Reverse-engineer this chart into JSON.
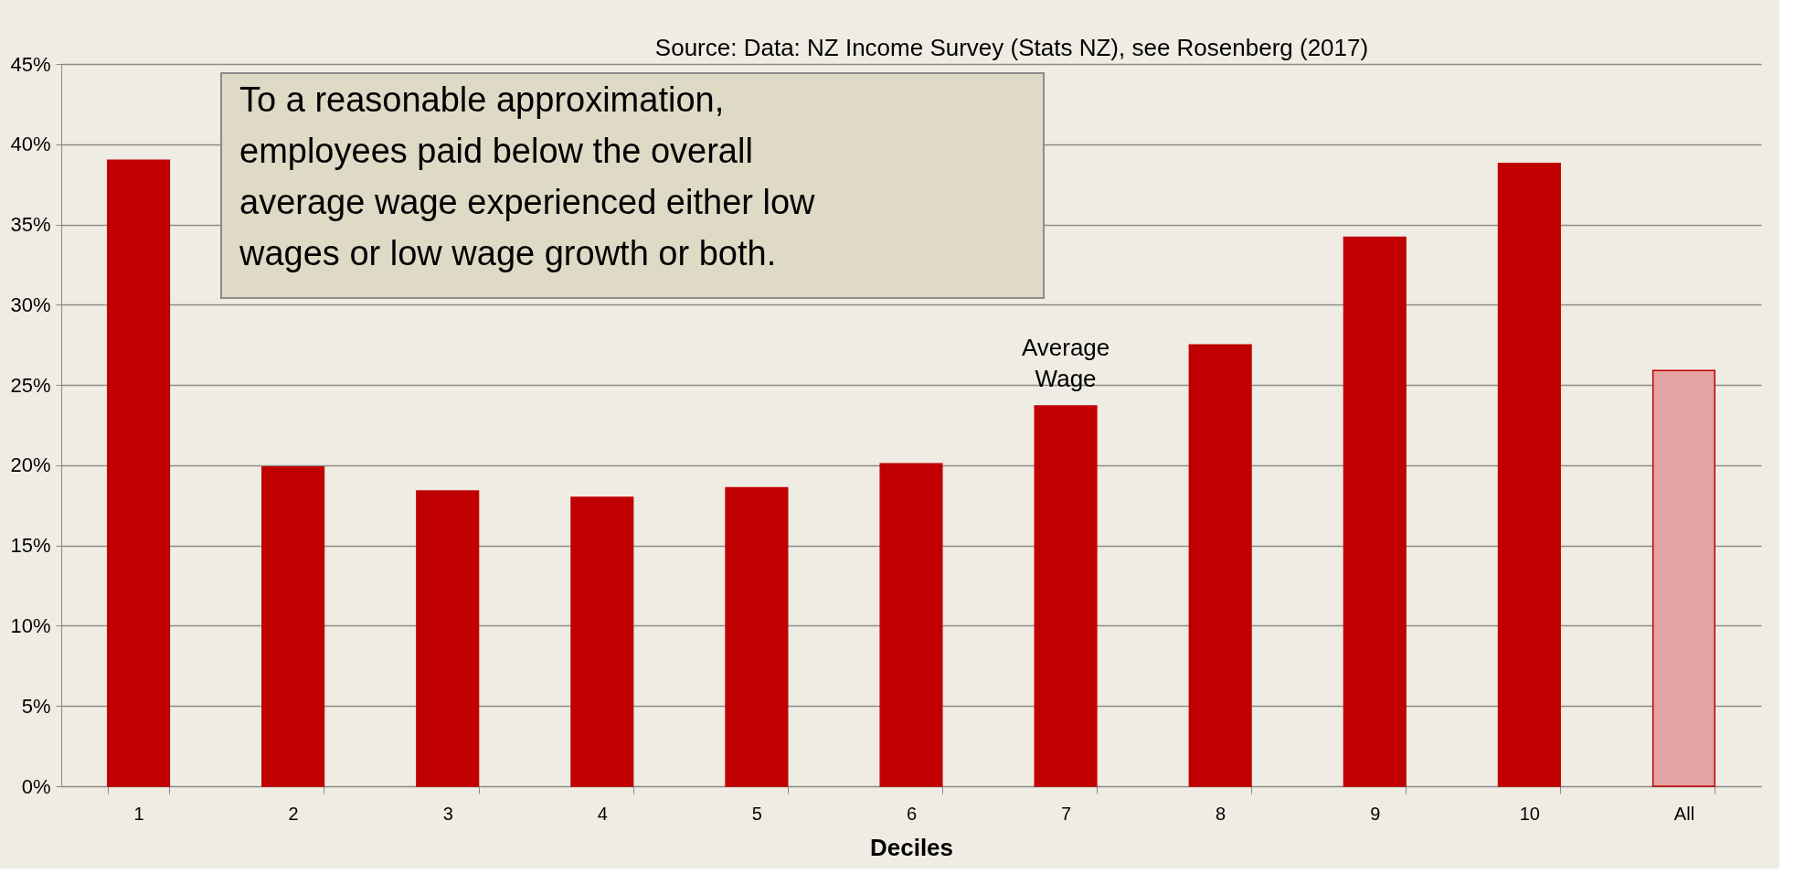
{
  "chart_data": {
    "type": "bar",
    "xlabel": "Deciles",
    "categories": [
      "1",
      "2",
      "3",
      "4",
      "5",
      "6",
      "7",
      "8",
      "9",
      "10",
      "All"
    ],
    "values": [
      39.0,
      19.9,
      18.4,
      18.0,
      18.6,
      20.1,
      23.7,
      27.5,
      34.2,
      38.8,
      25.9
    ],
    "colors": [
      "#c00000",
      "#c00000",
      "#c00000",
      "#c00000",
      "#c00000",
      "#c00000",
      "#c00000",
      "#c00000",
      "#c00000",
      "#c00000",
      "#e3a3a3"
    ],
    "ylim": [
      0,
      45
    ],
    "yticks": [
      {
        "value": 0,
        "label": "0%"
      },
      {
        "value": 5,
        "label": "5%"
      },
      {
        "value": 10,
        "label": "10%"
      },
      {
        "value": 15,
        "label": "15%"
      },
      {
        "value": 20,
        "label": "20%"
      },
      {
        "value": 25,
        "label": "25%"
      },
      {
        "value": 30,
        "label": "30%"
      },
      {
        "value": 35,
        "label": "35%"
      },
      {
        "value": 40,
        "label": "40%"
      },
      {
        "value": 45,
        "label": "45%"
      }
    ],
    "grid": "y",
    "annotations": [
      "Source: Data: NZ Income Survey (Stats NZ), see Rosenberg (2017)",
      "To a reasonable approximation, employees paid below the overall average wage experienced either low wages or low wage growth or both.",
      {
        "text": "Average Wage",
        "x": "7",
        "y": 23.7
      }
    ]
  }
}
